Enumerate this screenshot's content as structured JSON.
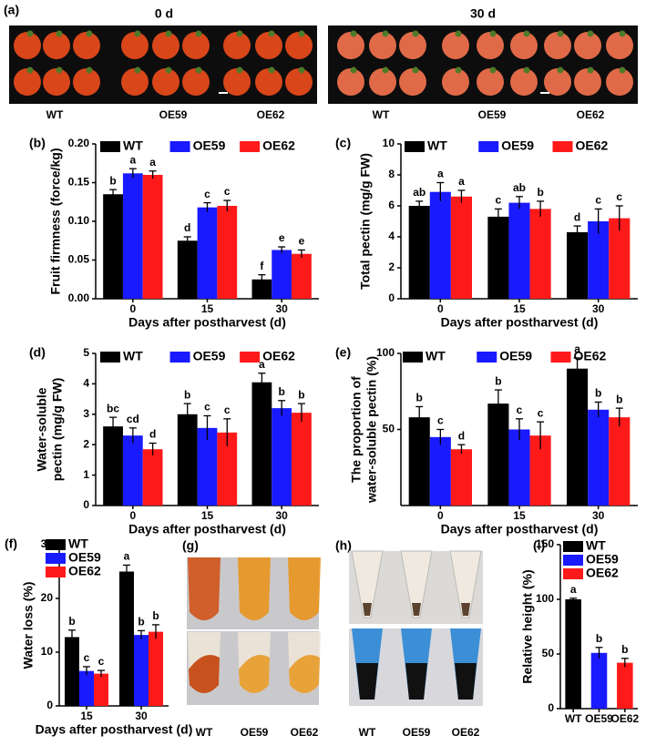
{
  "photos": {
    "a": {
      "panel": "(a)",
      "left_title": "0 d",
      "right_title": "30 d",
      "left_labels": [
        "WT",
        "OE59",
        "OE62"
      ],
      "right_labels": [
        "WT",
        "OE59",
        "OE62"
      ]
    },
    "g": {
      "panel": "(g)",
      "labels": [
        "WT",
        "OE59",
        "OE62"
      ]
    },
    "h": {
      "panel": "(h)",
      "labels": [
        "WT",
        "OE59",
        "OE62"
      ]
    }
  },
  "chart_data": [
    {
      "panel": "(b)",
      "type": "bar",
      "ylabel": "Fruit firmness (force/kg)",
      "xlabel": "Days after postharvest (d)",
      "categories": [
        "0",
        "15",
        "30"
      ],
      "ylim": [
        0,
        0.2
      ],
      "yticks": [
        {
          "value": 0,
          "label": "0.00"
        },
        {
          "value": 0.05,
          "label": "0.05"
        },
        {
          "value": 0.1,
          "label": "0.10"
        },
        {
          "value": 0.15,
          "label": "0.15"
        },
        {
          "value": 0.2,
          "label": "0.20"
        }
      ],
      "legend": "top",
      "series": [
        {
          "name": "WT",
          "color": "#000000",
          "values": [
            0.135,
            0.075,
            0.025
          ],
          "errors": [
            0.006,
            0.005,
            0.006
          ],
          "letters": [
            "b",
            "d",
            "f"
          ]
        },
        {
          "name": "OE59",
          "color": "#1a1aff",
          "values": [
            0.162,
            0.118,
            0.063
          ],
          "errors": [
            0.006,
            0.006,
            0.004
          ],
          "letters": [
            "a",
            "c",
            "e"
          ]
        },
        {
          "name": "OE62",
          "color": "#ff1a1a",
          "values": [
            0.16,
            0.12,
            0.058
          ],
          "errors": [
            0.005,
            0.007,
            0.005
          ],
          "letters": [
            "a",
            "c",
            "e"
          ]
        }
      ]
    },
    {
      "panel": "(c)",
      "type": "bar",
      "ylabel": "Total pectin (mg/g FW)",
      "xlabel": "Days after postharvest (d)",
      "categories": [
        "0",
        "15",
        "30"
      ],
      "ylim": [
        0,
        10
      ],
      "yticks": [
        0,
        2,
        4,
        6,
        8,
        10
      ],
      "legend": "top",
      "series": [
        {
          "name": "WT",
          "color": "#000000",
          "values": [
            6.0,
            5.3,
            4.3
          ],
          "errors": [
            0.3,
            0.5,
            0.4
          ],
          "letters": [
            "ab",
            "c",
            "d"
          ]
        },
        {
          "name": "OE59",
          "color": "#1a1aff",
          "values": [
            6.9,
            6.2,
            5.0
          ],
          "errors": [
            0.6,
            0.4,
            0.8
          ],
          "letters": [
            "a",
            "ab",
            "c"
          ]
        },
        {
          "name": "OE62",
          "color": "#ff1a1a",
          "values": [
            6.6,
            5.8,
            5.2
          ],
          "errors": [
            0.4,
            0.5,
            0.8
          ],
          "letters": [
            "a",
            "b",
            "c"
          ]
        }
      ]
    },
    {
      "panel": "(d)",
      "type": "bar",
      "ylabel": [
        "Water-soluble",
        "pectin (mg/g FW)"
      ],
      "xlabel": "Days after postharvest (d)",
      "categories": [
        "0",
        "15",
        "30"
      ],
      "ylim": [
        0,
        5
      ],
      "yticks": [
        0,
        1,
        2,
        3,
        4,
        5
      ],
      "legend": "top",
      "series": [
        {
          "name": "WT",
          "color": "#000000",
          "values": [
            2.6,
            3.0,
            4.05
          ],
          "errors": [
            0.3,
            0.35,
            0.3
          ],
          "letters": [
            "bc",
            "b",
            "a"
          ]
        },
        {
          "name": "OE59",
          "color": "#1a1aff",
          "values": [
            2.3,
            2.55,
            3.2
          ],
          "errors": [
            0.25,
            0.4,
            0.25
          ],
          "letters": [
            "cd",
            "c",
            "b"
          ]
        },
        {
          "name": "OE62",
          "color": "#ff1a1a",
          "values": [
            1.85,
            2.4,
            3.05
          ],
          "errors": [
            0.2,
            0.45,
            0.3
          ],
          "letters": [
            "d",
            "c",
            "b"
          ]
        }
      ]
    },
    {
      "panel": "(e)",
      "type": "bar",
      "ylabel": [
        "The proportion of",
        "water-soluble pectin (%)"
      ],
      "xlabel": "Days after postharvest (d)",
      "categories": [
        "0",
        "15",
        "30"
      ],
      "ylim": [
        0,
        100
      ],
      "yticks": [
        50,
        100
      ],
      "legend": "top",
      "series": [
        {
          "name": "WT",
          "color": "#000000",
          "values": [
            58,
            67,
            90
          ],
          "errors": [
            7,
            9,
            7
          ],
          "letters": [
            "b",
            "b",
            "a"
          ]
        },
        {
          "name": "OE59",
          "color": "#1a1aff",
          "values": [
            45,
            50,
            63
          ],
          "errors": [
            5,
            7,
            5
          ],
          "letters": [
            "c",
            "c",
            "b"
          ]
        },
        {
          "name": "OE62",
          "color": "#ff1a1a",
          "values": [
            37,
            46,
            58
          ],
          "errors": [
            3,
            9,
            6
          ],
          "letters": [
            "d",
            "c",
            "b"
          ]
        }
      ]
    },
    {
      "panel": "(f)",
      "type": "bar",
      "ylabel": "Water loss (%)",
      "xlabel": "Days after postharvest (d)",
      "categories": [
        "15",
        "30"
      ],
      "ylim": [
        0,
        30
      ],
      "yticks": [
        0,
        10,
        20,
        30
      ],
      "legend": "upper-left",
      "series": [
        {
          "name": "WT",
          "color": "#000000",
          "values": [
            12.8,
            25
          ],
          "errors": [
            1.3,
            1.2
          ],
          "letters": [
            "b",
            "a"
          ]
        },
        {
          "name": "OE59",
          "color": "#1a1aff",
          "values": [
            6.5,
            13.2
          ],
          "errors": [
            0.8,
            0.8
          ],
          "letters": [
            "c",
            "b"
          ]
        },
        {
          "name": "OE62",
          "color": "#ff1a1a",
          "values": [
            6,
            13.8
          ],
          "errors": [
            0.6,
            1.3
          ],
          "letters": [
            "c",
            "b"
          ]
        }
      ]
    },
    {
      "panel": "(i)",
      "type": "bar",
      "ylabel": "Relative height (%)",
      "categories": [
        "WT",
        "OE59",
        "OE62"
      ],
      "ylim": [
        0,
        150
      ],
      "yticks": [
        0,
        50,
        100,
        150
      ],
      "legend": "upper-left",
      "values": [
        100,
        51,
        42
      ],
      "errors": [
        1,
        5,
        4
      ],
      "letters": [
        "a",
        "b",
        "b"
      ],
      "colors": [
        "#000000",
        "#1a1aff",
        "#ff1a1a"
      ]
    }
  ]
}
